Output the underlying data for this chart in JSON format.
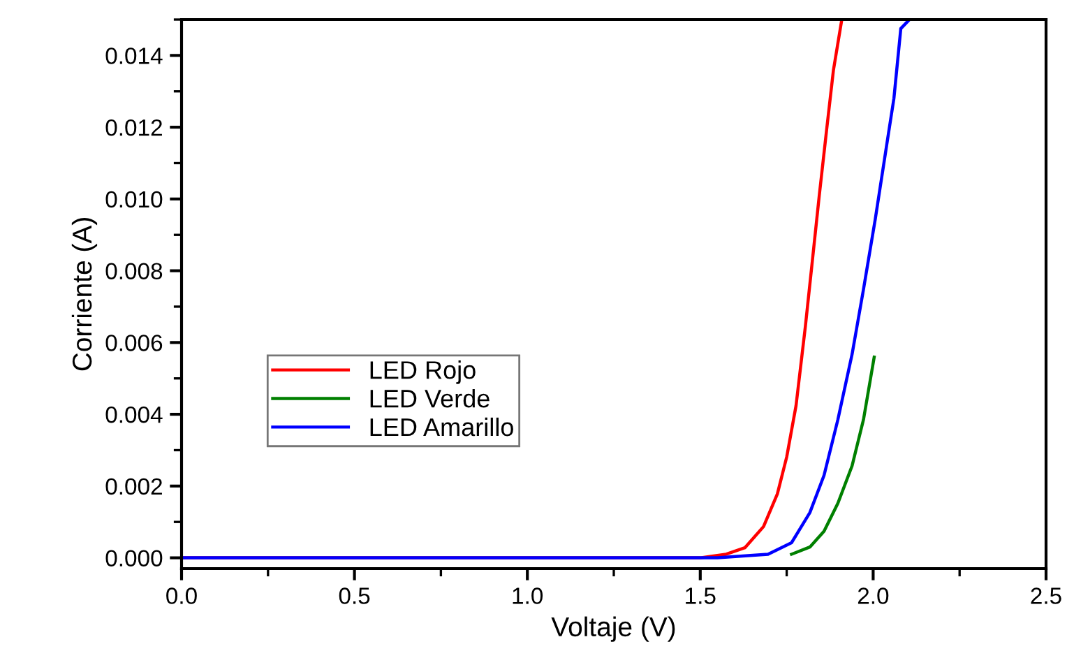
{
  "chart_data": {
    "type": "line",
    "xlabel": "Voltaje (V)",
    "ylabel": "Corriente (A)",
    "xlim": [
      0,
      2.5
    ],
    "xticks": [
      {
        "value": 0,
        "label": "0.0"
      },
      {
        "value": 0.5,
        "label": "0.5"
      },
      {
        "value": 1,
        "label": "1.0"
      },
      {
        "value": 1.5,
        "label": "1.5"
      },
      {
        "value": 2,
        "label": "2.0"
      },
      {
        "value": 2.5,
        "label": "2.5"
      }
    ],
    "ylim": [
      -0.0003,
      0.015
    ],
    "yticks": [
      {
        "value": 0,
        "label": "0.000"
      },
      {
        "value": 0.002,
        "label": "0.002"
      },
      {
        "value": 0.004,
        "label": "0.004"
      },
      {
        "value": 0.006,
        "label": "0.006"
      },
      {
        "value": 0.008,
        "label": "0.008"
      },
      {
        "value": 0.01,
        "label": "0.010"
      },
      {
        "value": 0.012,
        "label": "0.012"
      },
      {
        "value": 0.014,
        "label": "0.014"
      }
    ],
    "grid": false,
    "legend": "lower left",
    "marker": "none",
    "line_style": "solid",
    "series": [
      {
        "name": "LED Rojo",
        "color": "#ff0000",
        "x": [
          0,
          1.5,
          1.575,
          1.629,
          1.683,
          1.723,
          1.75,
          1.777,
          1.804,
          1.824,
          1.844,
          1.865,
          1.885,
          1.909
        ],
        "values": [
          0,
          0,
          0.0001,
          0.00028,
          0.00087,
          0.00178,
          0.00281,
          0.00424,
          0.00645,
          0.00826,
          0.01008,
          0.01189,
          0.01358,
          0.01498
        ]
      },
      {
        "name": "LED Verde",
        "color": "#008000",
        "x": [
          1.764,
          1.817,
          1.858,
          1.898,
          1.939,
          1.972,
          2.003
        ],
        "values": [
          0.0001,
          0.0003,
          0.00074,
          0.00152,
          0.00256,
          0.00385,
          0.00559
        ]
      },
      {
        "name": "LED Amarillo",
        "color": "#0000ff",
        "x": [
          0,
          1.55,
          1.696,
          1.764,
          1.817,
          1.858,
          1.898,
          1.939,
          1.972,
          2.006,
          2.033,
          2.06,
          2.08,
          2.103
        ],
        "values": [
          0,
          0,
          0.0001,
          0.00042,
          0.00126,
          0.0023,
          0.00385,
          0.00567,
          0.00748,
          0.00943,
          0.01112,
          0.0128,
          0.01475,
          0.01498
        ]
      }
    ]
  }
}
